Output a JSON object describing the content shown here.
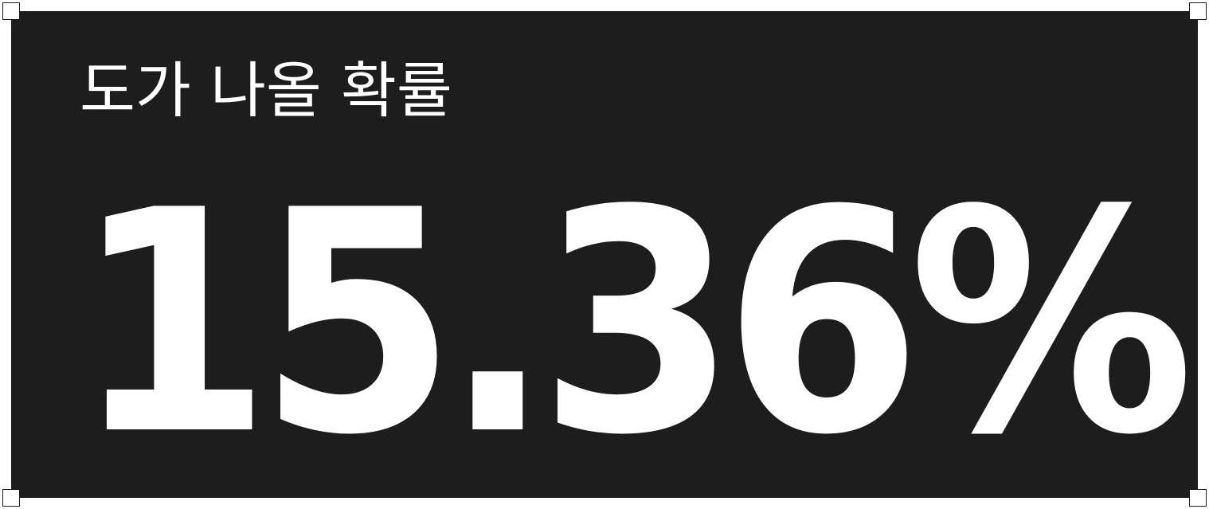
{
  "card": {
    "label": "도가 나올 확률",
    "value": "15.36%",
    "background_color": "#1d1d1d",
    "text_color": "#ffffff"
  }
}
